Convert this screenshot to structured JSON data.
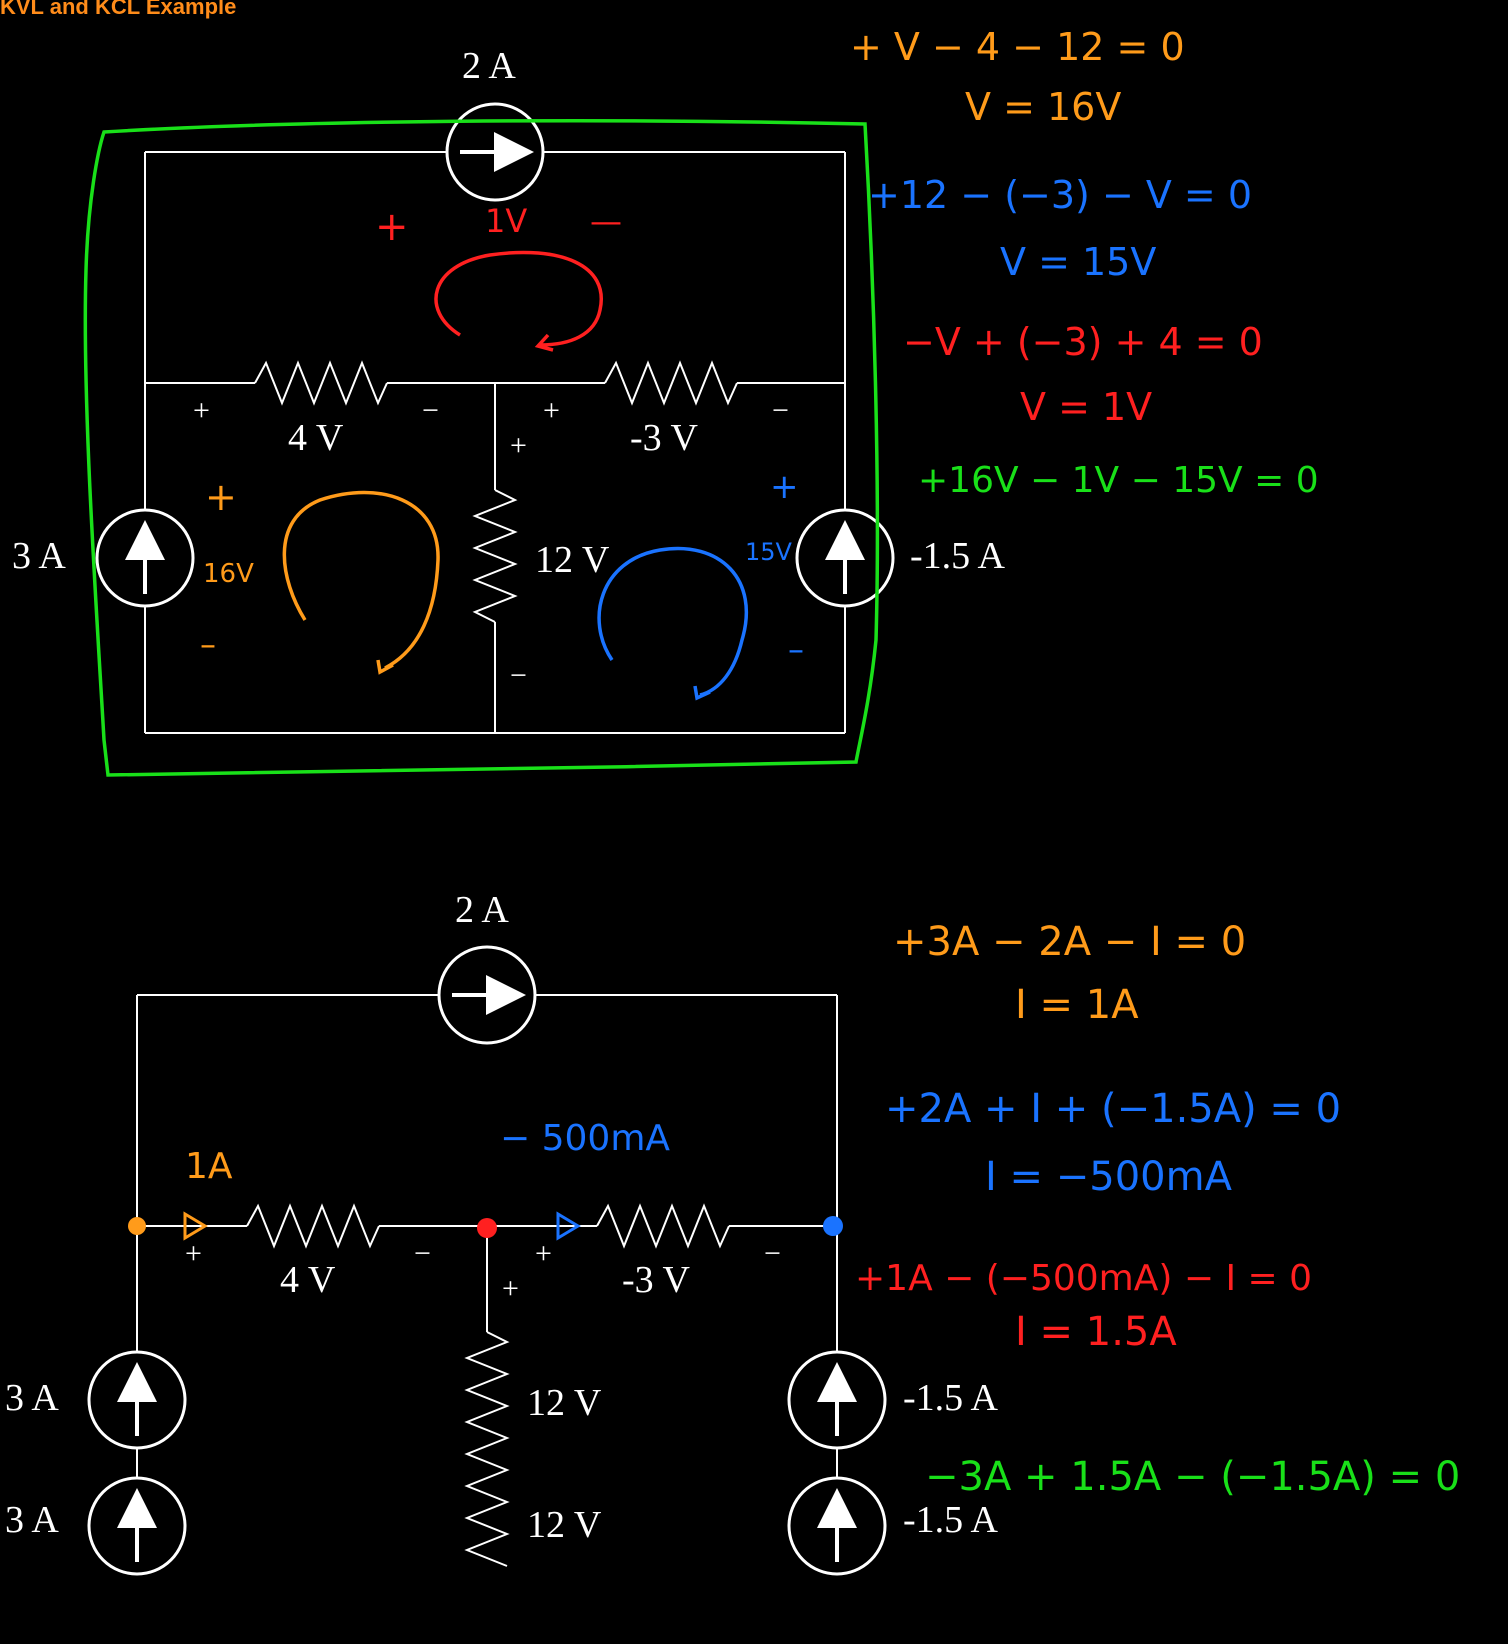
{
  "title": "KVL and KCL Example",
  "colors": {
    "orange": "#ff9b1a",
    "blue": "#1a73ff",
    "red": "#ff2020",
    "green": "#19e019",
    "white": "#ffffff"
  },
  "circuit_labels": {
    "top_source": "2 A",
    "left_source": "3 A",
    "right_source": "-1.5 A",
    "left_resistor": "4 V",
    "right_resistor": "-3 V",
    "middle_resistor": "12 V",
    "plus": "+",
    "minus": "−"
  },
  "kvl_annotations": {
    "top_plus": "+",
    "top_value": "1V",
    "top_minus": "—",
    "left_plus": "+",
    "left_value": "16V",
    "left_minus": "–",
    "right_plus": "+",
    "right_value": "15V",
    "right_minus": "–"
  },
  "kvl_equations": [
    {
      "color": "orange",
      "eq": "+ V − 4 − 12 = 0",
      "result": "V = 16V"
    },
    {
      "color": "blue",
      "eq": "+12 − (−3) − V = 0",
      "result": "V = 15V"
    },
    {
      "color": "red",
      "eq": "−V + (−3) + 4 = 0",
      "result": "V = 1V"
    },
    {
      "color": "green",
      "eq": "+16V − 1V − 15V = 0",
      "result": ""
    }
  ],
  "kcl_annotations": {
    "left_current": "1A",
    "mid_current": "− 500mA"
  },
  "kcl_equations": [
    {
      "color": "orange",
      "eq": "+3A − 2A − I = 0",
      "result": "I = 1A"
    },
    {
      "color": "blue",
      "eq": "+2A + I + (−1.5A) = 0",
      "result": "I = −500mA"
    },
    {
      "color": "red",
      "eq": "+1A − (−500mA) − I = 0",
      "result": "I = 1.5A"
    },
    {
      "color": "green",
      "eq": "−3A + 1.5A − (−1.5A) = 0",
      "result": ""
    }
  ]
}
